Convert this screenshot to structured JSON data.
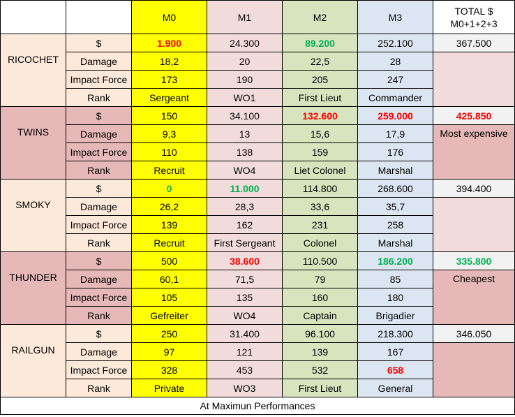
{
  "header": {
    "m0": "M0",
    "m1": "M1",
    "m2": "M2",
    "m3": "M3",
    "total_line1": "TOTAL $",
    "total_line2": "M0+1+2+3"
  },
  "labels": {
    "price": "$",
    "damage": "Damage",
    "impact": "Impact Force",
    "rank": "Rank"
  },
  "weapons": [
    {
      "name": "RICOCHET",
      "price": [
        "1.900",
        "24.300",
        "89.200",
        "252.100"
      ],
      "damage": [
        "18,2",
        "20",
        "22,5",
        "28"
      ],
      "impact": [
        "173",
        "190",
        "205",
        "247"
      ],
      "rank": [
        "Sergeant",
        "WO1",
        "First Lieut",
        "Commander"
      ],
      "total": "367.500",
      "note": ""
    },
    {
      "name": "TWINS",
      "price": [
        "150",
        "34.100",
        "132.600",
        "259.000"
      ],
      "damage": [
        "9,3",
        "13",
        "15,6",
        "17,9"
      ],
      "impact": [
        "110",
        "138",
        "159",
        "176"
      ],
      "rank": [
        "Recruit",
        "WO4",
        "Liet Colonel",
        "Marshal"
      ],
      "total": "425.850",
      "note": "Most expensive"
    },
    {
      "name": "SMOKY",
      "price": [
        "0",
        "11.000",
        "114.800",
        "268.600"
      ],
      "damage": [
        "26,2",
        "28,3",
        "33,6",
        "35,7"
      ],
      "impact": [
        "139",
        "162",
        "231",
        "258"
      ],
      "rank": [
        "Recruit",
        "First Sergeant",
        "Colonel",
        "Marshal"
      ],
      "total": "394.400",
      "note": ""
    },
    {
      "name": "THUNDER",
      "price": [
        "500",
        "38.600",
        "110.500",
        "186.200"
      ],
      "damage": [
        "60,1",
        "71,5",
        "79",
        "85"
      ],
      "impact": [
        "105",
        "135",
        "160",
        "180"
      ],
      "rank": [
        "Gefreiter",
        "WO4",
        "Captain",
        "Brigadier"
      ],
      "total": "335.800",
      "note": "Cheapest"
    },
    {
      "name": "RAILGUN",
      "price": [
        "250",
        "31.400",
        "96.100",
        "218.300"
      ],
      "damage": [
        "97",
        "121",
        "139",
        "167"
      ],
      "impact": [
        "328",
        "453",
        "532",
        "658"
      ],
      "rank": [
        "Private",
        "WO3",
        "First Lieut",
        "General"
      ],
      "total": "346.050",
      "note": ""
    }
  ],
  "highlights": {
    "red_hex": "#ff0000",
    "green_hex": "#00b050"
  },
  "footer": "At Maximun Performances"
}
